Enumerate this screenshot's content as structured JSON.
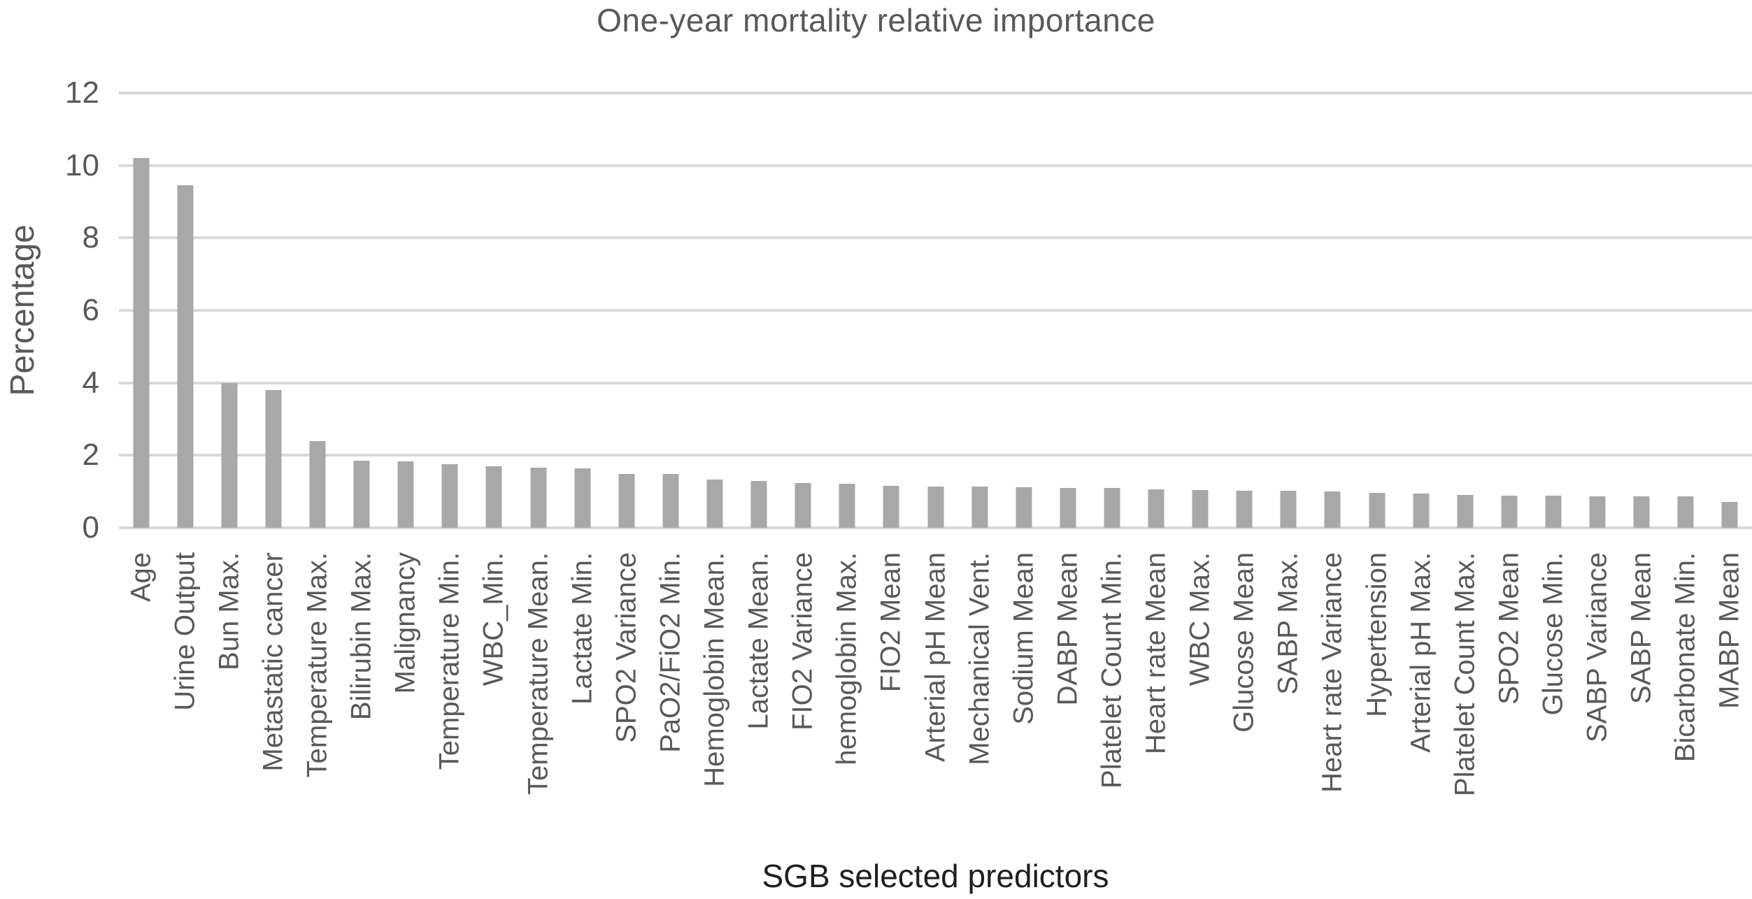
{
  "chart_data": {
    "type": "bar",
    "title": "One-year mortality relative importance",
    "xlabel": "SGB selected predictors",
    "ylabel": "Percentage",
    "ylim": [
      0,
      12
    ],
    "yticks": [
      0,
      2,
      4,
      6,
      8,
      10,
      12
    ],
    "grid": true,
    "legend": false,
    "categories": [
      "Age",
      "Urine Output",
      "Bun Max.",
      "Metastatic cancer",
      "Temperature Max.",
      "Bilirubin Max.",
      "Malignancy",
      "Temperature Min.",
      "WBC_Min.",
      "Temperature Mean.",
      "Lactate Min.",
      "SPO2 Variance",
      "PaO2/FiO2 Min.",
      "Hemoglobin Mean.",
      "Lactate Mean.",
      "FIO2 Variance",
      "hemoglobin Max.",
      "FIO2 Mean",
      "Arterial pH Mean",
      "Mechanical Vent.",
      "Sodium Mean",
      "DABP Mean",
      "Platelet Count Min.",
      "Heart rate Mean",
      "WBC Max.",
      "Glucose Mean",
      "SABP Max.",
      "Heart rate Variance",
      "Hypertension",
      "Arterial pH Max.",
      "Platelet Count Max.",
      "SPO2 Mean",
      "Glucose Min.",
      "SABP Variance",
      "SABP Mean",
      "Bicarbonate Min.",
      "MABP Mean"
    ],
    "values": [
      10.2,
      9.45,
      4.0,
      3.8,
      2.4,
      1.86,
      1.84,
      1.75,
      1.7,
      1.65,
      1.64,
      1.48,
      1.48,
      1.33,
      1.3,
      1.23,
      1.21,
      1.15,
      1.14,
      1.13,
      1.12,
      1.1,
      1.1,
      1.06,
      1.05,
      1.03,
      1.02,
      1.0,
      0.96,
      0.94,
      0.91,
      0.88,
      0.88,
      0.87,
      0.86,
      0.86,
      0.72
    ]
  },
  "colors": {
    "bar": "#a8a8a8",
    "gridline": "#d9d9d9",
    "axis_text": "#595959",
    "x_axis_title_text": "#1f1f1f",
    "background": "#ffffff"
  }
}
